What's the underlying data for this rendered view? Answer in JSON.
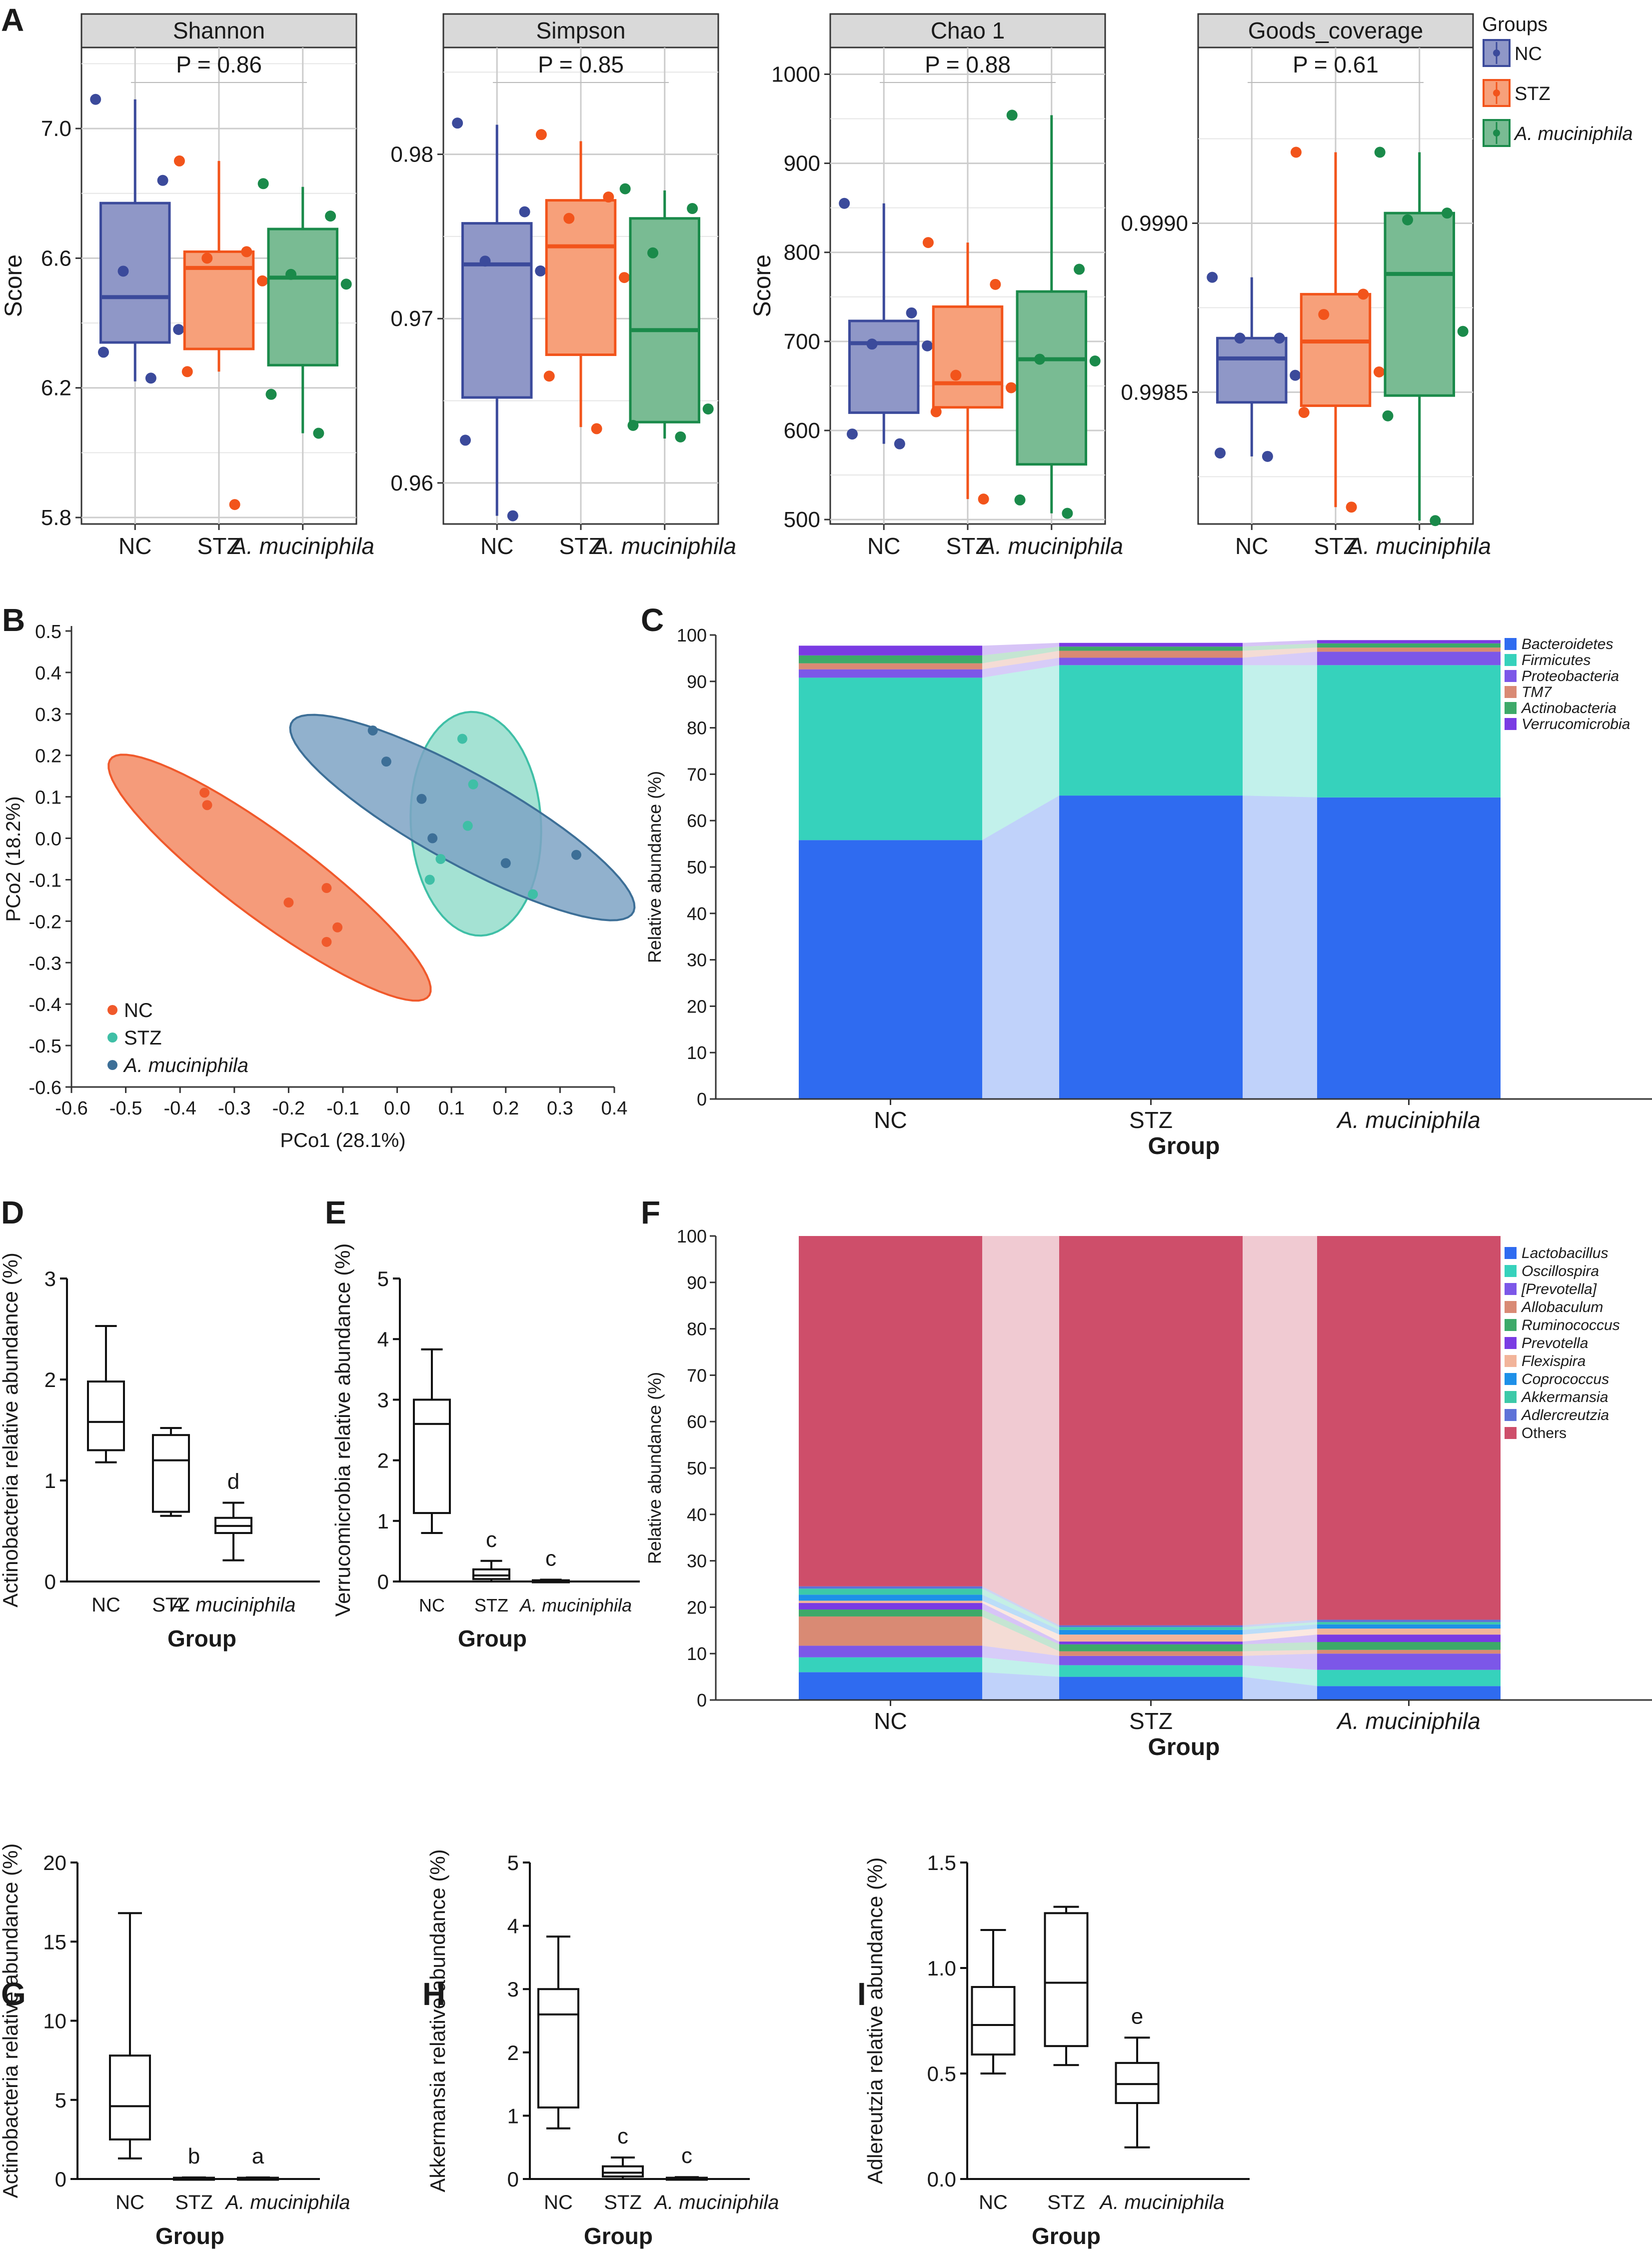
{
  "figure": {
    "panel_letters": [
      "A",
      "B",
      "C",
      "D",
      "E",
      "F",
      "G",
      "H",
      "I"
    ]
  },
  "chart_data": [
    {
      "id": "A",
      "type": "boxplot-faceted",
      "ylabel": "Score",
      "categories": [
        "NC",
        "STZ",
        "A. muciniphila"
      ],
      "colors": {
        "NC": "#3B4A9B",
        "STZ": "#F2541B",
        "A. muciniphila": "#1A8A4A"
      },
      "fills": {
        "NC": "#8F97C7",
        "STZ": "#F7A07A",
        "A. muciniphila": "#79BB93"
      },
      "legend": {
        "title": "Groups",
        "items": [
          "NC",
          "STZ",
          "A. muciniphila"
        ]
      },
      "facets": [
        {
          "title": "Shannon",
          "pvalue": "P = 0.86",
          "ylim": [
            5.78,
            7.25
          ],
          "yticks": [
            5.8,
            6.2,
            6.6,
            7.0
          ],
          "tick_labels": [
            "5.8",
            "6.2",
            "6.6",
            "7.0"
          ],
          "minor_grid": [
            6.0,
            6.4,
            6.8,
            7.2
          ],
          "boxes": [
            {
              "group": "NC",
              "min": 6.22,
              "q1": 6.34,
              "median": 6.48,
              "q3": 6.77,
              "max": 7.09,
              "points": [
                7.09,
                6.84,
                6.56,
                6.38,
                6.31,
                6.23
              ]
            },
            {
              "group": "STZ",
              "min": 6.25,
              "q1": 6.32,
              "median": 6.57,
              "q3": 6.62,
              "max": 6.9,
              "points": [
                6.9,
                6.62,
                6.6,
                6.53,
                6.25,
                5.84
              ]
            },
            {
              "group": "A. muciniphila",
              "min": 6.06,
              "q1": 6.27,
              "median": 6.54,
              "q3": 6.69,
              "max": 6.82,
              "points": [
                6.83,
                6.73,
                6.55,
                6.52,
                6.18,
                6.06
              ]
            }
          ]
        },
        {
          "title": "Simpson",
          "pvalue": "P = 0.85",
          "ylim": [
            0.9575,
            0.9865
          ],
          "yticks": [
            0.96,
            0.97,
            0.98
          ],
          "tick_labels": [
            "0.96",
            "0.97",
            "0.98"
          ],
          "minor_grid": [
            0.965,
            0.975,
            0.985
          ],
          "boxes": [
            {
              "group": "NC",
              "min": 0.958,
              "q1": 0.9652,
              "median": 0.9733,
              "q3": 0.9758,
              "max": 0.9818,
              "points": [
                0.9819,
                0.9765,
                0.9735,
                0.9729,
                0.9626,
                0.958
              ]
            },
            {
              "group": "STZ",
              "min": 0.9634,
              "q1": 0.9678,
              "median": 0.9744,
              "q3": 0.9772,
              "max": 0.9808,
              "points": [
                0.9812,
                0.9774,
                0.9761,
                0.9725,
                0.9665,
                0.9633
              ]
            },
            {
              "group": "A. muciniphila",
              "min": 0.9627,
              "q1": 0.9637,
              "median": 0.9693,
              "q3": 0.9761,
              "max": 0.9778,
              "points": [
                0.9779,
                0.9767,
                0.974,
                0.9645,
                0.9635,
                0.9628
              ]
            }
          ]
        },
        {
          "title": "Chao 1",
          "pvalue": "P = 0.88",
          "ylim": [
            495,
            1030
          ],
          "yticks": [
            500,
            600,
            700,
            800,
            900,
            1000
          ],
          "tick_labels": [
            "500",
            "600",
            "700",
            "800",
            "900",
            "1000"
          ],
          "minor_grid": [
            550,
            650,
            750,
            850,
            950
          ],
          "boxes": [
            {
              "group": "NC",
              "min": 585,
              "q1": 620,
              "median": 698,
              "q3": 723,
              "max": 855,
              "points": [
                855,
                732,
                697,
                695,
                596,
                585
              ]
            },
            {
              "group": "STZ",
              "min": 523,
              "q1": 626,
              "median": 653,
              "q3": 739,
              "max": 811,
              "points": [
                811,
                764,
                662,
                648,
                621,
                523
              ]
            },
            {
              "group": "A. muciniphila",
              "min": 507,
              "q1": 562,
              "median": 680,
              "q3": 756,
              "max": 954,
              "points": [
                954,
                781,
                680,
                678,
                522,
                507
              ]
            }
          ]
        },
        {
          "title": "Goods_coverage",
          "pvalue": "P = 0.61",
          "ylim": [
            0.99811,
            0.99952
          ],
          "yticks": [
            0.9985,
            0.999
          ],
          "tick_labels": [
            "0.9985",
            "0.9990"
          ],
          "minor_grid": [
            0.99825,
            0.99875,
            0.99925
          ],
          "boxes": [
            {
              "group": "NC",
              "min": 0.99831,
              "q1": 0.99847,
              "median": 0.9986,
              "q3": 0.99866,
              "max": 0.99884,
              "points": [
                0.99884,
                0.99866,
                0.99866,
                0.99855,
                0.99832,
                0.99831
              ]
            },
            {
              "group": "STZ",
              "min": 0.99816,
              "q1": 0.99846,
              "median": 0.99865,
              "q3": 0.99879,
              "max": 0.99921,
              "points": [
                0.99921,
                0.99879,
                0.99873,
                0.99856,
                0.99844,
                0.99816
              ]
            },
            {
              "group": "A. muciniphila",
              "min": 0.99812,
              "q1": 0.99849,
              "median": 0.99885,
              "q3": 0.99903,
              "max": 0.99921,
              "points": [
                0.99921,
                0.99903,
                0.99901,
                0.99868,
                0.99843,
                0.99812
              ]
            }
          ]
        }
      ]
    },
    {
      "id": "B",
      "type": "scatter",
      "xlabel": "PCo1 (28.1%)",
      "ylabel": "PCo2 (18.2%)",
      "xlim": [
        -0.6,
        0.4
      ],
      "ylim": [
        -0.6,
        0.5
      ],
      "xticks": [
        -0.6,
        -0.5,
        -0.4,
        -0.3,
        -0.2,
        -0.1,
        0.0,
        0.1,
        0.2,
        0.3,
        0.4
      ],
      "xtick_labels": [
        "-0.6",
        "-0.5",
        "-0.4",
        "-0.3",
        "-0.2",
        "-0.1",
        "0.0",
        "0.1",
        "0.2",
        "0.3",
        "0.4"
      ],
      "yticks": [
        -0.6,
        -0.5,
        -0.4,
        -0.3,
        -0.2,
        -0.1,
        0.0,
        0.1,
        0.2,
        0.3,
        0.4,
        0.5
      ],
      "ytick_labels": [
        "-0.6",
        "-0.5",
        "-0.4",
        "-0.3",
        "-0.2",
        "-0.1",
        "0.0",
        "0.1",
        "0.2",
        "0.3",
        "0.4",
        "0.5"
      ],
      "series": [
        {
          "name": "NC",
          "color": "#F0592B",
          "fill": "#F38A63",
          "points": [
            [
              -0.355,
              0.11
            ],
            [
              -0.35,
              0.08
            ],
            [
              -0.2,
              -0.155
            ],
            [
              -0.13,
              -0.12
            ],
            [
              -0.13,
              -0.25
            ],
            [
              -0.11,
              -0.215
            ]
          ],
          "ellipse": {
            "cx": -0.235,
            "cy": -0.095,
            "rx": 0.41,
            "ry": 0.09,
            "angle_deg": -45
          }
        },
        {
          "name": "STZ",
          "color": "#3FBFA6",
          "fill": "#94DDCB",
          "points": [
            [
              0.12,
              0.24
            ],
            [
              0.14,
              0.13
            ],
            [
              0.13,
              0.03
            ],
            [
              0.08,
              -0.05
            ],
            [
              0.06,
              -0.1
            ],
            [
              0.25,
              -0.135
            ]
          ],
          "ellipse": {
            "cx": 0.145,
            "cy": 0.035,
            "rx": 0.27,
            "ry": 0.12,
            "angle_deg": -88
          }
        },
        {
          "name": "A. muciniphila",
          "color": "#3D6F97",
          "fill": "#7EA3C4",
          "points": [
            [
              -0.045,
              0.26
            ],
            [
              -0.02,
              0.185
            ],
            [
              0.045,
              0.095
            ],
            [
              0.065,
              0.0
            ],
            [
              0.2,
              -0.06
            ],
            [
              0.33,
              -0.04
            ]
          ],
          "ellipse": {
            "cx": 0.12,
            "cy": 0.05,
            "rx": 0.39,
            "ry": 0.1,
            "angle_deg": -37
          }
        }
      ]
    },
    {
      "id": "C",
      "type": "bar",
      "stacked": true,
      "xlabel": "Group",
      "ylabel": "Relative abundance (%)",
      "ylim": [
        0,
        100
      ],
      "yticks": [
        0,
        10,
        20,
        30,
        40,
        50,
        60,
        70,
        80,
        90,
        100
      ],
      "categories": [
        "NC",
        "STZ",
        "A. muciniphila"
      ],
      "series": [
        {
          "name": "Bacteroidetes",
          "color": "#2F6BF0",
          "values": [
            55.8,
            65.4,
            65.0
          ]
        },
        {
          "name": "Firmicutes",
          "color": "#36D2BC",
          "values": [
            35.0,
            28.1,
            28.5
          ]
        },
        {
          "name": "Proteobacteria",
          "color": "#7C57E8",
          "values": [
            1.8,
            1.6,
            2.9
          ]
        },
        {
          "name": "TM7",
          "color": "#D98A74",
          "values": [
            1.3,
            1.5,
            0.9
          ]
        },
        {
          "name": "Actinobacteria",
          "color": "#3DA969",
          "values": [
            1.7,
            0.9,
            0.9
          ]
        },
        {
          "name": "Verrucomicrobia",
          "color": "#7A3BE3",
          "values": [
            2.1,
            0.8,
            0.7
          ]
        }
      ]
    },
    {
      "id": "D",
      "type": "boxplot",
      "xlabel": "Group",
      "ylabel": "Actinobacteria relative abundance (%)",
      "ylim": [
        0,
        3
      ],
      "yticks": [
        0,
        1,
        2,
        3
      ],
      "tick_labels": [
        "0",
        "1",
        "2",
        "3"
      ],
      "categories": [
        "NC",
        "STZ",
        "A. muciniphila"
      ],
      "boxes": [
        {
          "group": "NC",
          "min": 1.18,
          "q1": 1.3,
          "median": 1.58,
          "q3": 1.98,
          "max": 2.53,
          "annotation": ""
        },
        {
          "group": "STZ",
          "min": 0.65,
          "q1": 0.69,
          "median": 1.2,
          "q3": 1.45,
          "max": 1.52,
          "annotation": ""
        },
        {
          "group": "A. muciniphila",
          "min": 0.21,
          "q1": 0.48,
          "median": 0.55,
          "q3": 0.63,
          "max": 0.78,
          "annotation": "d"
        }
      ]
    },
    {
      "id": "E",
      "type": "boxplot",
      "xlabel": "Group",
      "ylabel": "Verrucomicrobia relative abundance (%)",
      "ylim": [
        0,
        5
      ],
      "yticks": [
        0,
        1,
        2,
        3,
        4,
        5
      ],
      "tick_labels": [
        "0",
        "1",
        "2",
        "3",
        "4",
        "5"
      ],
      "categories": [
        "NC",
        "STZ",
        "A. muciniphila"
      ],
      "boxes": [
        {
          "group": "NC",
          "min": 0.8,
          "q1": 1.13,
          "median": 2.6,
          "q3": 3.0,
          "max": 3.83,
          "annotation": ""
        },
        {
          "group": "STZ",
          "min": 0.0,
          "q1": 0.04,
          "median": 0.1,
          "q3": 0.2,
          "max": 0.34,
          "annotation": "c"
        },
        {
          "group": "A. muciniphila",
          "min": 0.0,
          "q1": 0.0,
          "median": 0.01,
          "q3": 0.02,
          "max": 0.03,
          "annotation": "c"
        }
      ]
    },
    {
      "id": "F",
      "type": "bar",
      "stacked": true,
      "xlabel": "Group",
      "ylabel": "Relative abundance (%)",
      "ylim": [
        0,
        100
      ],
      "yticks": [
        0,
        10,
        20,
        30,
        40,
        50,
        60,
        70,
        80,
        90,
        100
      ],
      "categories": [
        "NC",
        "STZ",
        "A. muciniphila"
      ],
      "series": [
        {
          "name": "Lactobacillus",
          "color": "#2F6BF0",
          "values": [
            6.0,
            5.0,
            3.0
          ]
        },
        {
          "name": "Oscillospira",
          "color": "#36D2BC",
          "values": [
            3.2,
            2.5,
            3.5
          ]
        },
        {
          "name": "[Prevotella]",
          "color": "#7C57E8",
          "values": [
            2.5,
            2.0,
            3.5
          ]
        },
        {
          "name": "Allobaculum",
          "color": "#D98A74",
          "values": [
            6.3,
            1.0,
            0.8
          ]
        },
        {
          "name": "Ruminococcus",
          "color": "#3DA969",
          "values": [
            1.5,
            1.5,
            1.7
          ]
        },
        {
          "name": "Prevotella",
          "color": "#7A3BE3",
          "values": [
            1.4,
            0.6,
            1.6
          ]
        },
        {
          "name": "Flexispira",
          "color": "#F2B49A",
          "values": [
            0.5,
            1.5,
            1.3
          ]
        },
        {
          "name": "Coprococcus",
          "color": "#1E90E8",
          "values": [
            1.3,
            1.0,
            0.9
          ]
        },
        {
          "name": "Akkermansia",
          "color": "#3CC9A8",
          "values": [
            1.3,
            0.6,
            0.5
          ]
        },
        {
          "name": "Adlercreutzia",
          "color": "#5E72D8",
          "values": [
            0.5,
            0.4,
            0.5
          ]
        },
        {
          "name": "Others",
          "color": "#CE4E6A",
          "values": [
            75.5,
            83.9,
            82.7
          ]
        }
      ]
    },
    {
      "id": "G",
      "type": "boxplot",
      "xlabel": "Group",
      "ylabel": "Actinobacteria relative abundance (%)",
      "ylim": [
        0,
        20
      ],
      "yticks": [
        0,
        5,
        10,
        15,
        20
      ],
      "tick_labels": [
        "0",
        "5",
        "10",
        "15",
        "20"
      ],
      "categories": [
        "NC",
        "STZ",
        "A. muciniphila"
      ],
      "boxes": [
        {
          "group": "NC",
          "min": 1.3,
          "q1": 2.5,
          "median": 4.6,
          "q3": 7.8,
          "max": 16.8,
          "annotation": ""
        },
        {
          "group": "STZ",
          "min": 0.0,
          "q1": 0.02,
          "median": 0.05,
          "q3": 0.08,
          "max": 0.1,
          "annotation": "b"
        },
        {
          "group": "A. muciniphila",
          "min": 0.0,
          "q1": 0.02,
          "median": 0.05,
          "q3": 0.08,
          "max": 0.1,
          "annotation": "a"
        }
      ]
    },
    {
      "id": "H",
      "type": "boxplot",
      "xlabel": "Group",
      "ylabel": "Akkermansia relative abundance (%)",
      "ylim": [
        0,
        5
      ],
      "yticks": [
        0,
        1,
        2,
        3,
        4,
        5
      ],
      "tick_labels": [
        "0",
        "1",
        "2",
        "3",
        "4",
        "5"
      ],
      "categories": [
        "NC",
        "STZ",
        "A. muciniphila"
      ],
      "boxes": [
        {
          "group": "NC",
          "min": 0.8,
          "q1": 1.13,
          "median": 2.6,
          "q3": 3.0,
          "max": 3.83,
          "annotation": ""
        },
        {
          "group": "STZ",
          "min": 0.0,
          "q1": 0.04,
          "median": 0.1,
          "q3": 0.2,
          "max": 0.34,
          "annotation": "c"
        },
        {
          "group": "A. muciniphila",
          "min": 0.0,
          "q1": 0.0,
          "median": 0.01,
          "q3": 0.02,
          "max": 0.03,
          "annotation": "c"
        }
      ]
    },
    {
      "id": "I",
      "type": "boxplot",
      "xlabel": "Group",
      "ylabel": "Adlereutzia relative abundance (%)",
      "ylim": [
        0,
        1.5
      ],
      "yticks": [
        0,
        0.5,
        1.0,
        1.5
      ],
      "tick_labels": [
        "0.0",
        "0.5",
        "1.0",
        "1.5"
      ],
      "categories": [
        "NC",
        "STZ",
        "A. muciniphila"
      ],
      "boxes": [
        {
          "group": "NC",
          "min": 0.5,
          "q1": 0.59,
          "median": 0.73,
          "q3": 0.91,
          "max": 1.18,
          "annotation": ""
        },
        {
          "group": "STZ",
          "min": 0.54,
          "q1": 0.63,
          "median": 0.93,
          "q3": 1.26,
          "max": 1.29,
          "annotation": ""
        },
        {
          "group": "A. muciniphila",
          "min": 0.15,
          "q1": 0.36,
          "median": 0.45,
          "q3": 0.55,
          "max": 0.67,
          "annotation": "e"
        }
      ]
    }
  ]
}
